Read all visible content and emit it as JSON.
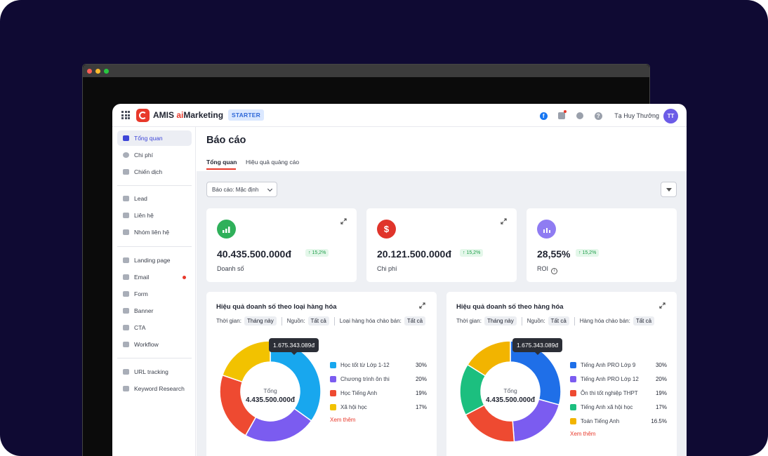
{
  "app": {
    "brand_prefix": "AMIS ",
    "brand_ai": "ai",
    "brand_suffix": "Marketing",
    "plan_badge": "STARTER",
    "user_name": "Tạ Huy Thưởng",
    "avatar_initials": "TT"
  },
  "sidebar": {
    "items": [
      {
        "label": "Tổng quan",
        "icon": "chart-icon",
        "active": true
      },
      {
        "label": "Chi phí",
        "icon": "coin-icon"
      },
      {
        "label": "Chiến dịch",
        "icon": "megaphone-icon"
      },
      {
        "label": "Lead",
        "icon": "users-icon"
      },
      {
        "label": "Liên hệ",
        "icon": "contact-card-icon"
      },
      {
        "label": "Nhóm liên hệ",
        "icon": "group-icon"
      },
      {
        "label": "Landing page",
        "icon": "page-icon"
      },
      {
        "label": "Email",
        "icon": "email-icon",
        "dot": true
      },
      {
        "label": "Form",
        "icon": "form-icon"
      },
      {
        "label": "Banner",
        "icon": "banner-icon"
      },
      {
        "label": "CTA",
        "icon": "cta-icon"
      },
      {
        "label": "Workflow",
        "icon": "workflow-icon"
      },
      {
        "label": "URL tracking",
        "icon": "link-icon"
      },
      {
        "label": "Keyword Research",
        "icon": "key-icon"
      }
    ]
  },
  "page": {
    "title": "Báo cáo",
    "tabs": [
      "Tổng quan",
      "Hiệu quả quảng cáo"
    ],
    "report_select": "Báo cáo: Mặc định"
  },
  "kpis": [
    {
      "value": "40.435.500.000đ",
      "delta": "↑ 15,2%",
      "label": "Doanh số",
      "color": "#2fb05a"
    },
    {
      "value": "20.121.500.000đ",
      "delta": "↑ 15,2%",
      "label": "Chi phí",
      "color": "#e0342b"
    },
    {
      "value": "28,55%",
      "delta": "↑ 15,2%",
      "label": "ROI",
      "color": "#8f7cf2"
    }
  ],
  "cards": [
    {
      "title": "Hiệu quả doanh số theo loại hàng hóa",
      "filters": {
        "time_label": "Thời gian:",
        "time_value": "Tháng này",
        "source_label": "Nguồn:",
        "source_value": "Tất cả",
        "third_label": "Loại hàng hóa chào bán:",
        "third_value": "Tất cả"
      },
      "tooltip": "1.675.343.089đ",
      "center_label": "Tổng",
      "center_value": "4.435.500.000đ",
      "see_more": "Xem thêm",
      "chart_data": {
        "type": "pie",
        "categories": [
          "Học tốt từ Lớp 1-12",
          "Chương trình ôn thi",
          "Học Tiếng Anh",
          "Xã hội học"
        ],
        "pct_labels": [
          "30%",
          "20%",
          "19%",
          "17%"
        ],
        "values": [
          30,
          20,
          19,
          17
        ],
        "colors": [
          "#18a7ee",
          "#7b5cf0",
          "#ee4a31",
          "#f2c200"
        ]
      }
    },
    {
      "title": "Hiệu quả doanh số theo hàng hóa",
      "filters": {
        "time_label": "Thời gian:",
        "time_value": "Tháng này",
        "source_label": "Nguồn:",
        "source_value": "Tất cả",
        "third_label": "Hàng hóa chào bán:",
        "third_value": "Tất cả"
      },
      "tooltip": "1.675.343.089đ",
      "center_label": "Tổng",
      "center_value": "4.435.500.000đ",
      "see_more": "Xem thêm",
      "chart_data": {
        "type": "pie",
        "categories": [
          "Tiếng Anh PRO Lớp 9",
          "Tiếng Anh PRO Lớp 12",
          "Ôn thi tốt nghiệp THPT",
          "Tiếng Anh xã hội học",
          "Toán Tiếng Anh"
        ],
        "pct_labels": [
          "30%",
          "20%",
          "19%",
          "17%",
          "16.5%"
        ],
        "values": [
          30,
          20,
          19,
          17,
          16.5
        ],
        "colors": [
          "#1f6fe8",
          "#7b5cf0",
          "#ee4a31",
          "#1cbf7f",
          "#f2b400"
        ]
      }
    }
  ]
}
